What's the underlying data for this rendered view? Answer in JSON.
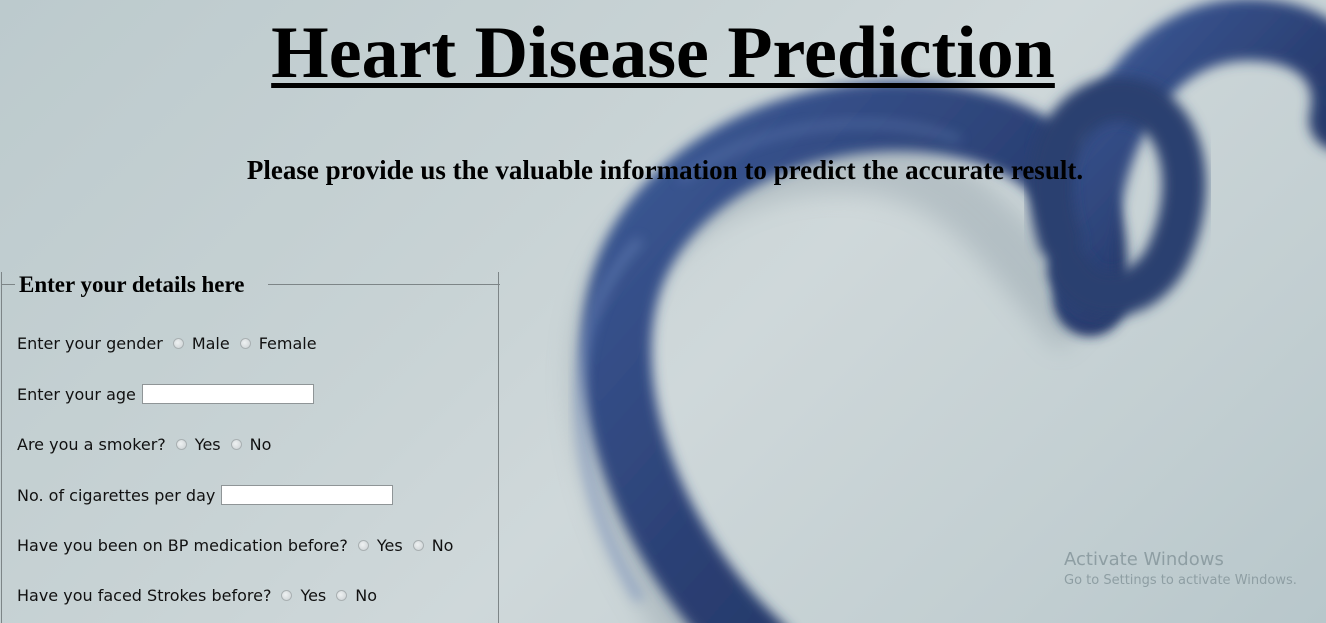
{
  "header": {
    "title": "Heart Disease Prediction",
    "subtitle": "Please provide us the valuable information to predict the accurate result."
  },
  "form": {
    "legend": "Enter your details here",
    "fields": [
      {
        "label": "Enter your gender",
        "type": "radio",
        "options": [
          "Male",
          "Female"
        ]
      },
      {
        "label": "Enter your age",
        "type": "text",
        "value": ""
      },
      {
        "label": "Are you a smoker?",
        "type": "radio",
        "options": [
          "Yes",
          "No"
        ]
      },
      {
        "label": "No. of cigarettes per day",
        "type": "text",
        "value": ""
      },
      {
        "label": "Have you been on BP medication before?",
        "type": "radio",
        "options": [
          "Yes",
          "No"
        ]
      },
      {
        "label": "Have you faced Strokes before?",
        "type": "radio",
        "options": [
          "Yes",
          "No"
        ]
      }
    ]
  },
  "watermark": {
    "title": "Activate Windows",
    "subtitle": "Go to Settings to activate Windows."
  },
  "colors": {
    "background": "#c7d2d4",
    "stethoscope": "#2a3f73",
    "text": "#000000"
  },
  "icons": {
    "background_image": "stethoscope-heart-icon"
  }
}
